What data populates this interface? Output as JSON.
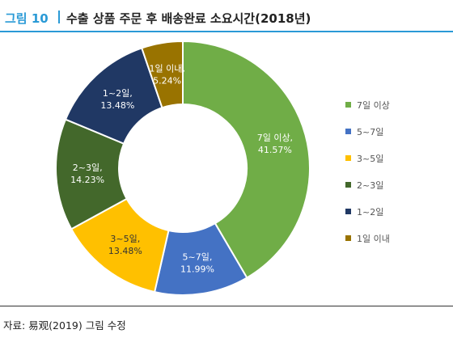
{
  "header": {
    "figure_number": "그림 10",
    "title": "수출 상품 주문 후 배송완료 소요시간(2018년)"
  },
  "footer": {
    "source": "자료: 易观(2019) 그림 수정"
  },
  "chart_data": {
    "type": "pie",
    "donut": true,
    "title": "수출 상품 주문 후 배송완료 소요시간(2018년)",
    "legend_position": "right",
    "slices": [
      {
        "label": "7일 이상",
        "value": 41.57,
        "value_label": "41.57%",
        "color": "#70ad47"
      },
      {
        "label": "5~7일",
        "value": 11.99,
        "value_label": "11.99%",
        "color": "#4472c4"
      },
      {
        "label": "3~5일",
        "value": 13.48,
        "value_label": "13.48%",
        "color": "#ffc000"
      },
      {
        "label": "2~3일",
        "value": 14.23,
        "value_label": "14.23%",
        "color": "#43682b"
      },
      {
        "label": "1~2일",
        "value": 13.48,
        "value_label": "13.48%",
        "color": "#203864"
      },
      {
        "label": "1일 이내",
        "value": 5.24,
        "value_label": "5.24%",
        "color": "#997300"
      }
    ]
  }
}
